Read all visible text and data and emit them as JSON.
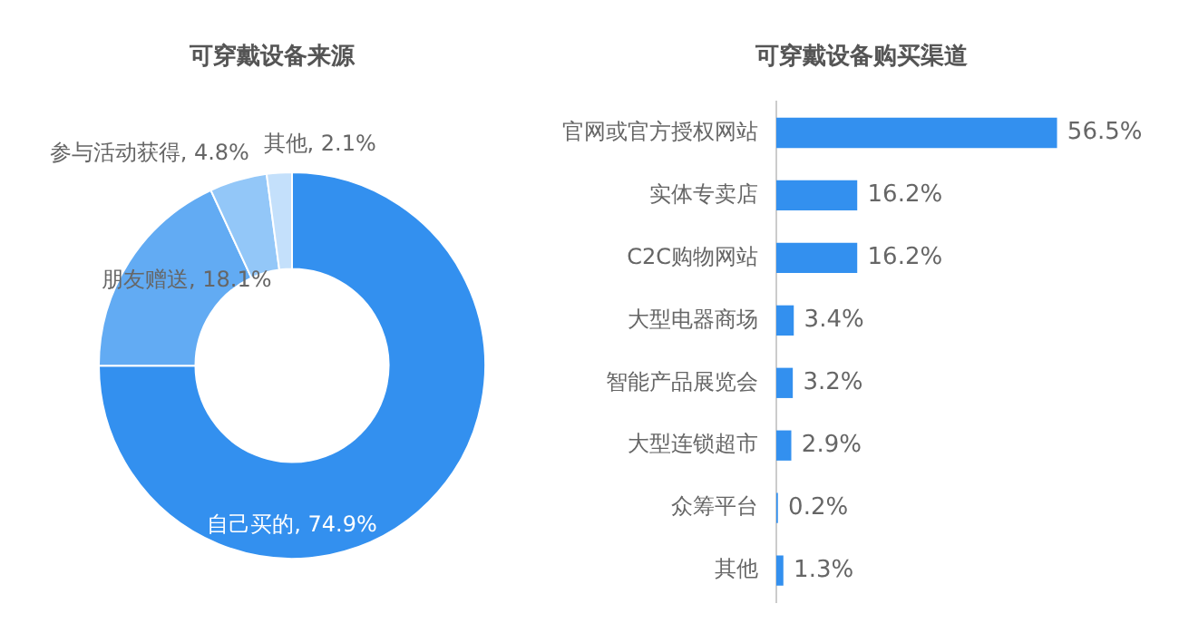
{
  "chart_data": [
    {
      "type": "donut",
      "title": "可穿戴设备来源",
      "categories": [
        "自己买的",
        "朋友赠送",
        "参与活动获得",
        "其他"
      ],
      "values": [
        74.9,
        18.1,
        4.8,
        2.1
      ],
      "colors": [
        "#3390ef",
        "#62abf3",
        "#93c7f8",
        "#c4e0fb"
      ],
      "value_labels": [
        "74.9%",
        "18.1%",
        "4.8%",
        "2.1%"
      ]
    },
    {
      "type": "bar",
      "orientation": "horizontal",
      "title": "可穿戴设备购买渠道",
      "categories": [
        "官网或官方授权网站",
        "实体专卖店",
        "C2C购物网站",
        "大型电器商场",
        "智能产品展览会",
        "大型连锁超市",
        "众筹平台",
        "其他"
      ],
      "values": [
        56.5,
        16.2,
        16.2,
        3.4,
        3.2,
        2.9,
        0.2,
        1.3
      ],
      "color": "#3390ef",
      "value_labels": [
        "56.5%",
        "16.2%",
        "16.2%",
        "3.4%",
        "3.2%",
        "2.9%",
        "0.2%",
        "1.3%"
      ],
      "tick_labels": "y"
    }
  ]
}
